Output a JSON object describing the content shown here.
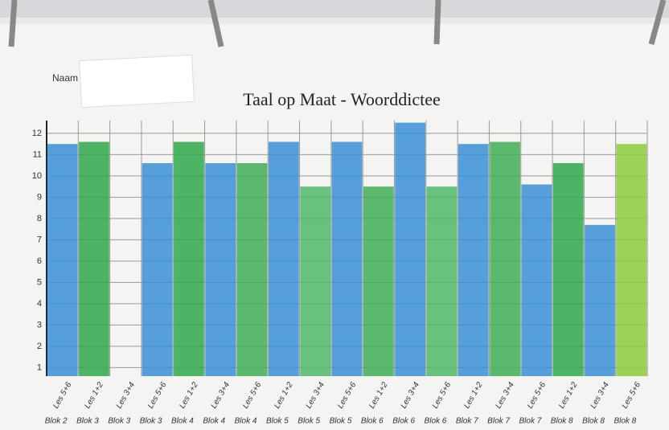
{
  "chart_data": {
    "type": "bar",
    "title": "Taal op Maat  - Woorddictee",
    "annotation": "Naam",
    "categories": [
      "Les 5+6",
      "Les 1+2",
      "Les 3+4",
      "Les 5+6",
      "Les 1+2",
      "Les 3+4",
      "Les 5+6",
      "Les 1+2",
      "Les 3+4",
      "Les 5+6",
      "Les 1+2",
      "Les 3+4",
      "Les 5+6",
      "Les 1+2",
      "Les 3+4",
      "Les 5+6",
      "Les 1+2",
      "Les 3+4",
      "Les 5+6"
    ],
    "category_groups": [
      "Blok 2",
      "Blok 3",
      "Blok 3",
      "Blok 3",
      "Blok 4",
      "Blok 4",
      "Blok 4",
      "Blok 5",
      "Blok 5",
      "Blok 5",
      "Blok 6",
      "Blok 6",
      "Blok 6",
      "Blok 7",
      "Blok 7",
      "Blok 7",
      "Blok 8",
      "Blok 8",
      "Blok 8"
    ],
    "values": [
      11.5,
      11.6,
      null,
      10.6,
      11.6,
      10.6,
      10.6,
      11.6,
      9.5,
      11.6,
      9.5,
      12.5,
      9.5,
      11.5,
      11.6,
      9.6,
      10.6,
      7.7,
      11.5
    ],
    "colors": [
      "#3a8fd6",
      "#2fa84a",
      null,
      "#3a8fd6",
      "#2fa84a",
      "#3a8fd6",
      "#3fae55",
      "#3a8fd6",
      "#4cb866",
      "#3a8fd6",
      "#3fae55",
      "#3a8fd6",
      "#4cb866",
      "#3a8fd6",
      "#3fae55",
      "#3a8fd6",
      "#2fa84a",
      "#3a8fd6",
      "#8ccc3a"
    ],
    "ylim": [
      0.6,
      12.6
    ],
    "yticks": [
      1,
      2,
      3,
      4,
      5,
      6,
      7,
      8,
      9,
      10,
      11,
      12
    ],
    "grid": true
  }
}
